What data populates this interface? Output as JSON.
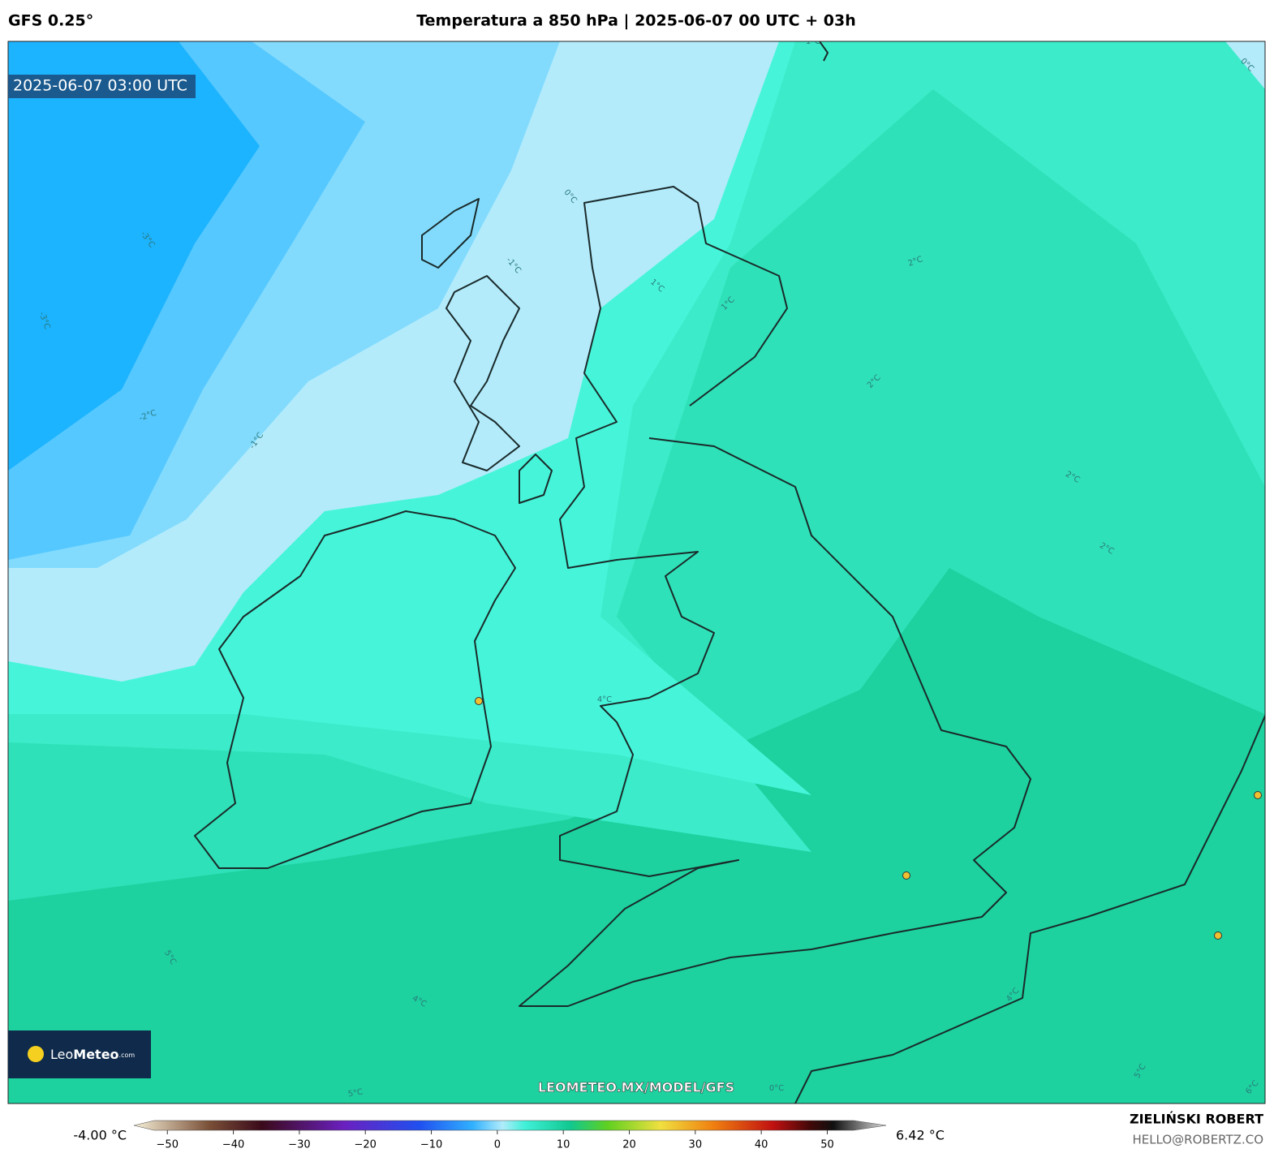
{
  "header": {
    "model": "GFS 0.25°",
    "title": "Temperatura a 850 hPa | 2025-06-07 00 UTC + 03h"
  },
  "map": {
    "valid_time": "2025-06-07 03:00 UTC",
    "logo": {
      "leo": "Leo",
      "meteo": "Meteo",
      "domain": ".com"
    },
    "url": "LEOMETEO.MX/MODEL/GFS",
    "contour_labels": [
      "-3°C",
      "-3°C",
      "-2°C",
      "-1°C",
      "-1°C",
      "1°C",
      "0°C",
      "0°C",
      "1°C",
      "2°C",
      "2°C",
      "2°C",
      "2°C",
      "1°C",
      "4°C",
      "5°C",
      "4°C",
      "4°C",
      "5°C",
      "5°C",
      "6°C",
      "0°C"
    ]
  },
  "colorbar": {
    "range": [
      -52,
      54
    ],
    "min_label": "-4.00 °C",
    "max_label": "6.42 °C",
    "ticks": [
      {
        "value": -50,
        "label": "−50"
      },
      {
        "value": -40,
        "label": "−40"
      },
      {
        "value": -30,
        "label": "−30"
      },
      {
        "value": -20,
        "label": "−20"
      },
      {
        "value": -10,
        "label": "−10"
      },
      0,
      10,
      20,
      30,
      40,
      50
    ]
  },
  "footer": {
    "author": "ZIELIŃSKI ROBERT",
    "email": "HELLO@ROBERTZ.CO"
  }
}
